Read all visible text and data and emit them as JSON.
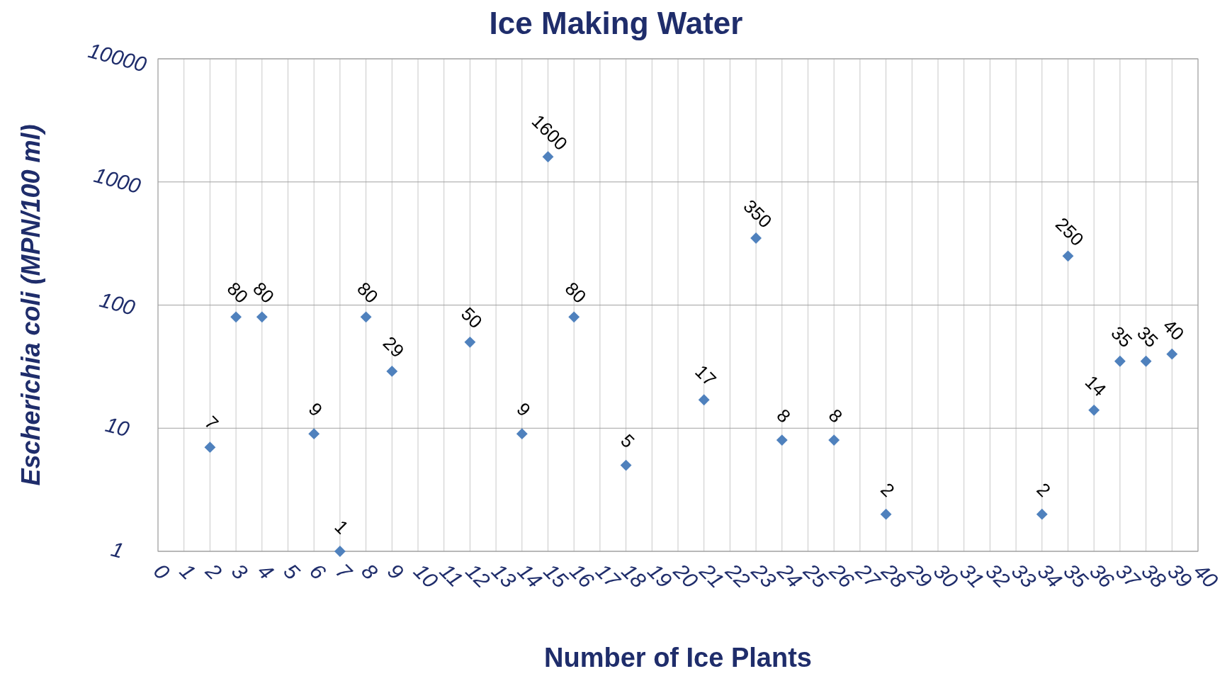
{
  "chart_data": {
    "type": "scatter",
    "title": "Ice  Making Water",
    "xlabel": "Number of Ice Plants",
    "ylabel": "Escherichia coli  (MPN/100 ml)",
    "x": [
      2,
      3,
      4,
      6,
      7,
      8,
      9,
      12,
      14,
      15,
      16,
      18,
      21,
      23,
      24,
      26,
      28,
      34,
      35,
      36,
      37,
      38,
      39
    ],
    "series": [
      {
        "color": "#4f81bd",
        "values": [
          7,
          80,
          80,
          9,
          1,
          80,
          29,
          50,
          9,
          1600,
          80,
          5,
          17,
          350,
          8,
          8,
          2,
          2,
          250,
          14,
          35,
          35,
          40
        ]
      }
    ],
    "xlim": [
      0,
      40
    ],
    "xticks": [
      0,
      1,
      2,
      3,
      4,
      5,
      6,
      7,
      8,
      9,
      10,
      11,
      12,
      13,
      14,
      15,
      16,
      17,
      18,
      19,
      20,
      21,
      22,
      23,
      24,
      25,
      26,
      27,
      28,
      29,
      30,
      31,
      32,
      33,
      34,
      35,
      36,
      37,
      38,
      39,
      40
    ],
    "ylim": [
      1,
      10000
    ],
    "yticks": [
      1,
      10,
      100,
      1000,
      10000
    ],
    "log": "y",
    "grid": true,
    "marker": "diamond",
    "data_labels": true
  }
}
